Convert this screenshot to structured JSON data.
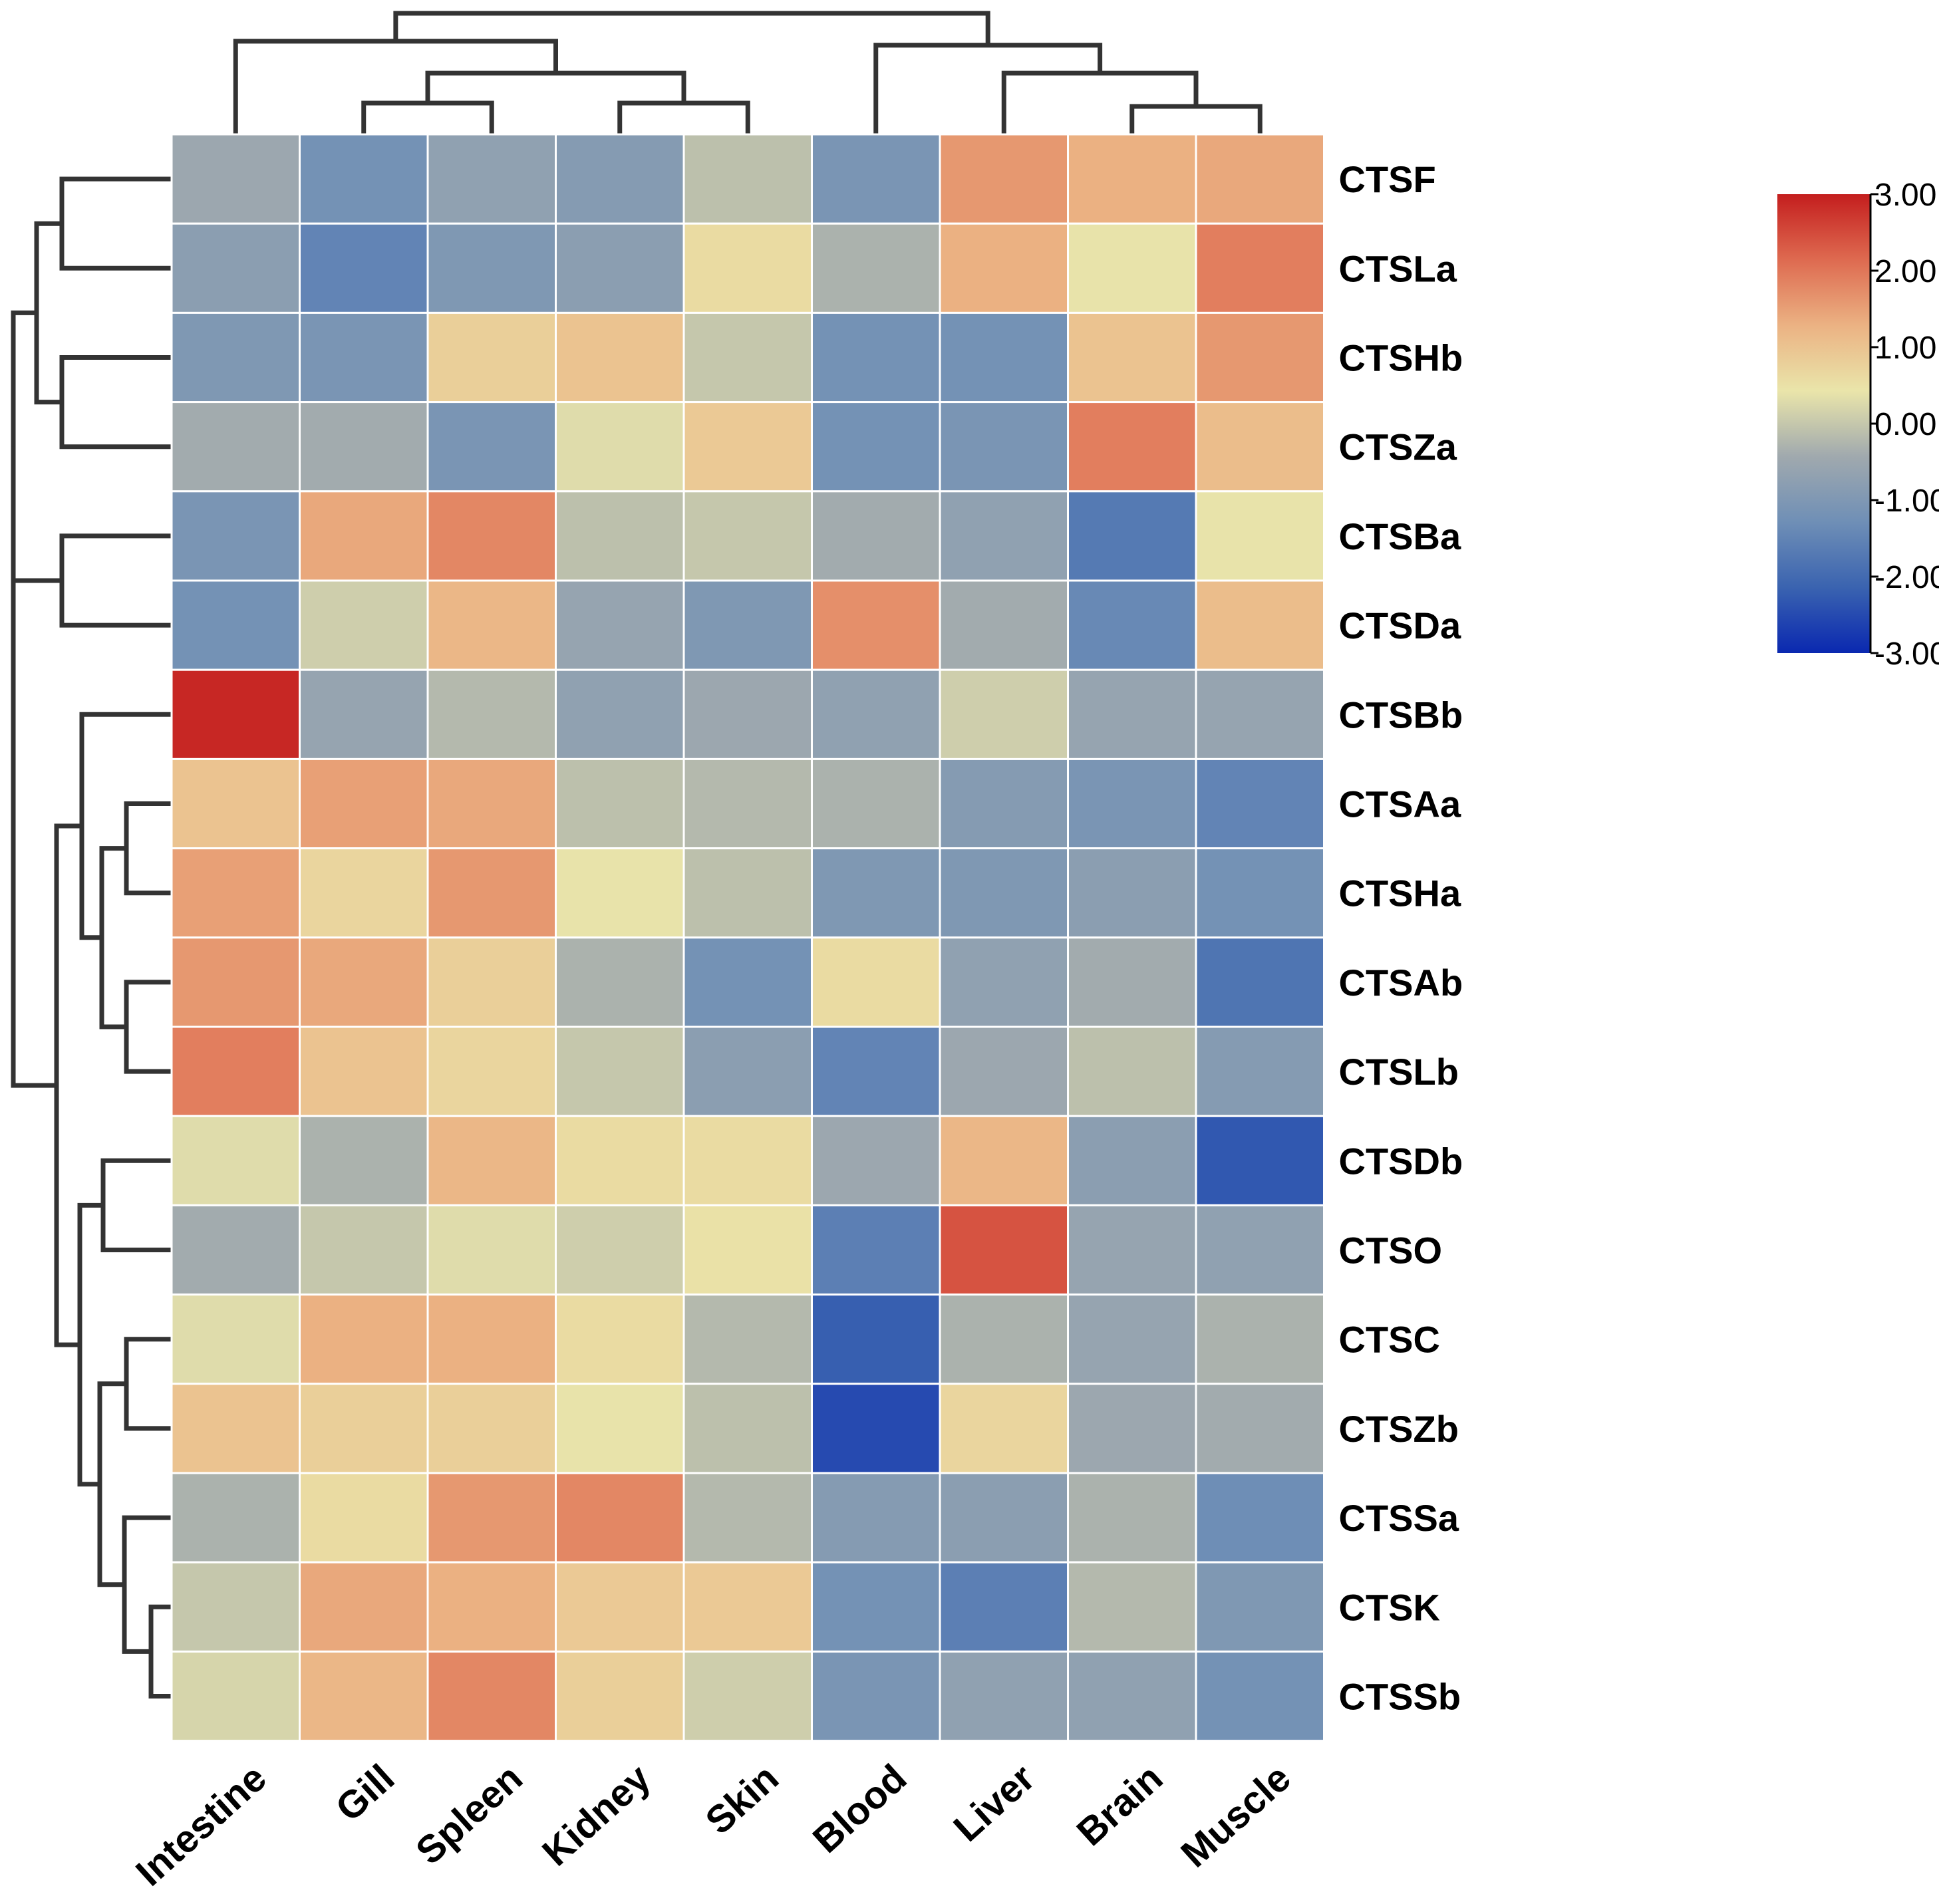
{
  "chart_data": {
    "type": "heatmap",
    "title": "",
    "columns": [
      "Intestine",
      "Gill",
      "Spleen",
      "Kidney",
      "Skin",
      "Blood",
      "Liver",
      "Brain",
      "Muscle"
    ],
    "rows": [
      "CTSF",
      "CTSLa",
      "CTSHb",
      "CTSZa",
      "CTSBa",
      "CTSDa",
      "CTSBb",
      "CTSAa",
      "CTSHa",
      "CTSAb",
      "CTSLb",
      "CTSDb",
      "CTSO",
      "CTSC",
      "CTSZb",
      "CTSSa",
      "CTSK",
      "CTSSb"
    ],
    "values": [
      [
        -0.5,
        -1.2,
        -0.7,
        -0.9,
        -0.1,
        -1.1,
        1.6,
        1.3,
        1.4
      ],
      [
        -0.8,
        -1.5,
        -1.0,
        -0.8,
        0.6,
        -0.3,
        1.3,
        0.4,
        1.9
      ],
      [
        -1.0,
        -1.1,
        0.8,
        1.0,
        0.0,
        -1.2,
        -1.2,
        1.0,
        1.6
      ],
      [
        -0.4,
        -0.4,
        -1.1,
        0.3,
        0.9,
        -1.2,
        -1.1,
        1.9,
        1.1
      ],
      [
        -1.1,
        1.4,
        1.8,
        -0.1,
        0.0,
        -0.4,
        -0.7,
        -1.7,
        0.4
      ],
      [
        -1.2,
        0.1,
        1.2,
        -0.6,
        -1.0,
        1.7,
        -0.4,
        -1.4,
        1.1
      ],
      [
        2.9,
        -0.6,
        -0.2,
        -0.7,
        -0.5,
        -0.7,
        0.1,
        -0.6,
        -0.6
      ],
      [
        1.0,
        1.5,
        1.4,
        -0.1,
        -0.2,
        -0.3,
        -0.9,
        -1.1,
        -1.5
      ],
      [
        1.5,
        0.7,
        1.6,
        0.4,
        -0.1,
        -1.0,
        -1.0,
        -0.8,
        -1.2
      ],
      [
        1.6,
        1.4,
        0.8,
        -0.3,
        -1.2,
        0.6,
        -0.7,
        -0.4,
        -1.8
      ],
      [
        1.9,
        1.0,
        0.7,
        0.0,
        -0.8,
        -1.5,
        -0.5,
        -0.1,
        -0.9
      ],
      [
        0.3,
        -0.3,
        1.2,
        0.6,
        0.6,
        -0.5,
        1.2,
        -0.8,
        -2.3
      ],
      [
        -0.4,
        0.0,
        0.3,
        0.1,
        0.5,
        -1.6,
        2.4,
        -0.6,
        -0.7
      ],
      [
        0.3,
        1.3,
        1.3,
        0.6,
        -0.2,
        -2.2,
        -0.3,
        -0.6,
        -0.3
      ],
      [
        1.0,
        0.8,
        0.8,
        0.4,
        -0.1,
        -2.5,
        0.7,
        -0.5,
        -0.4
      ],
      [
        -0.3,
        0.6,
        1.6,
        1.8,
        -0.2,
        -0.9,
        -0.8,
        -0.3,
        -1.3
      ],
      [
        0.0,
        1.4,
        1.3,
        0.9,
        0.9,
        -1.2,
        -1.6,
        -0.2,
        -1.0
      ],
      [
        0.2,
        1.2,
        1.8,
        0.8,
        0.1,
        -1.1,
        -0.7,
        -0.7,
        -1.2
      ]
    ],
    "color_scale": {
      "min": -3.0,
      "max": 3.0,
      "colors": [
        "#0a28b0",
        "#3a63b0",
        "#6f8fb6",
        "#a0a9ae",
        "#eae5aa",
        "#ebb283",
        "#de6a50",
        "#c41e1e"
      ],
      "tick_labels": [
        "3.00",
        "2.00",
        "1.00",
        "0.00",
        "-1.00",
        "-2.00",
        "-3.00"
      ],
      "placement": "top-right"
    },
    "column_dendrogram": true,
    "row_dendrogram": true
  }
}
